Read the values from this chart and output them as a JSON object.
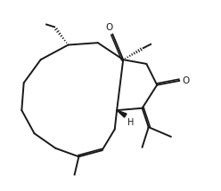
{
  "bg_color": "#ffffff",
  "line_color": "#1a1a1a",
  "line_width": 1.4,
  "fig_width": 2.48,
  "fig_height": 2.15,
  "dpi": 100,
  "xlim": [
    0,
    10
  ],
  "ylim": [
    0,
    9
  ]
}
